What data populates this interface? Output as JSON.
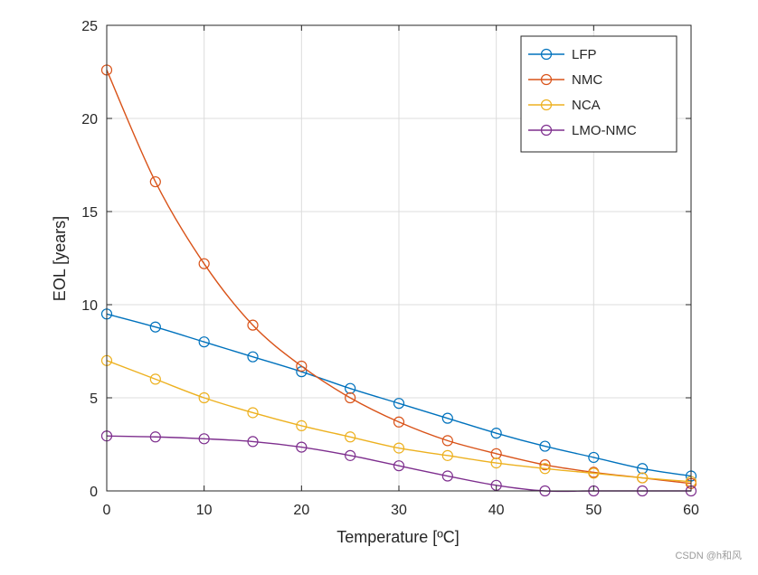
{
  "chart_data": {
    "type": "line",
    "title": "",
    "xlabel": "Temperature [ºC]",
    "ylabel": "EOL [years]",
    "xlim": [
      0,
      60
    ],
    "ylim": [
      0,
      25
    ],
    "xticks": [
      0,
      10,
      20,
      30,
      40,
      50,
      60
    ],
    "yticks": [
      0,
      5,
      10,
      15,
      20,
      25
    ],
    "grid": true,
    "legend_position": "top-right",
    "marker": "circle",
    "x": [
      0,
      5,
      10,
      15,
      20,
      25,
      30,
      35,
      40,
      45,
      50,
      55,
      60
    ],
    "series": [
      {
        "name": "LFP",
        "color": "#0072BD",
        "values": [
          9.5,
          8.8,
          8.0,
          7.2,
          6.4,
          5.5,
          4.7,
          3.9,
          3.1,
          2.4,
          1.8,
          1.2,
          0.8
        ]
      },
      {
        "name": "NMC",
        "color": "#D95319",
        "values": [
          22.6,
          16.6,
          12.2,
          8.9,
          6.7,
          5.0,
          3.7,
          2.7,
          2.0,
          1.4,
          1.0,
          0.7,
          0.4
        ]
      },
      {
        "name": "NCA",
        "color": "#EDB120",
        "values": [
          7.0,
          6.0,
          5.0,
          4.2,
          3.5,
          2.9,
          2.3,
          1.9,
          1.5,
          1.2,
          0.95,
          0.7,
          0.5
        ]
      },
      {
        "name": "LMO-NMC",
        "color": "#7E2F8E",
        "values": [
          2.95,
          2.9,
          2.8,
          2.65,
          2.35,
          1.9,
          1.35,
          0.8,
          0.3,
          0.0,
          0.0,
          0.0,
          0.0
        ]
      }
    ]
  },
  "watermark": "CSDN @h和风"
}
